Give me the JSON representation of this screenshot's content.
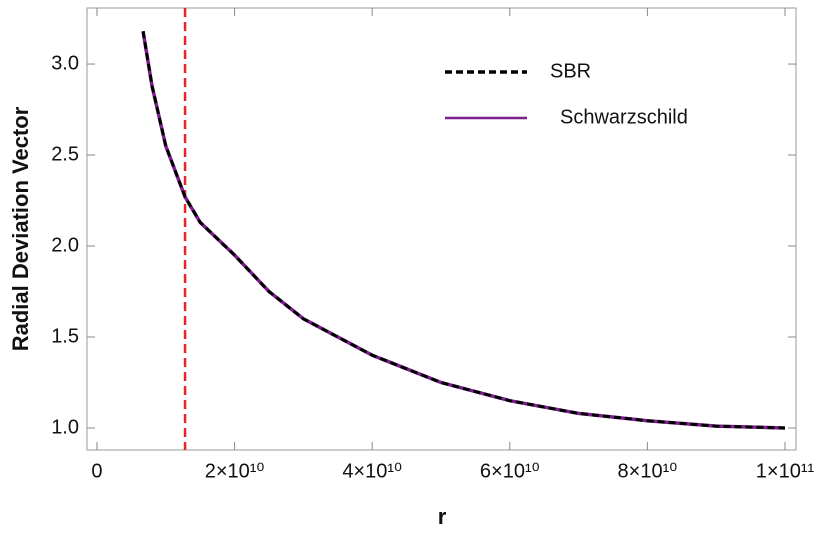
{
  "chart_data": {
    "type": "line",
    "xlabel": "r",
    "ylabel": "Radial Deviation Vector",
    "x": [
      6700000000,
      8000000000,
      10000000000,
      12800000000,
      15000000000,
      20000000000,
      25000000000,
      30000000000,
      40000000000,
      50000000000,
      60000000000,
      70000000000,
      80000000000,
      90000000000,
      100000000000
    ],
    "series": [
      {
        "name": "Schwarzschild",
        "color": "#7b1f8c",
        "dash": false,
        "values": [
          3.18,
          2.88,
          2.55,
          2.27,
          2.13,
          1.95,
          1.75,
          1.6,
          1.4,
          1.25,
          1.15,
          1.08,
          1.04,
          1.01,
          1.0
        ]
      },
      {
        "name": "SBR",
        "color": "#000000",
        "dash": true,
        "values": [
          3.18,
          2.88,
          2.55,
          2.27,
          2.13,
          1.95,
          1.75,
          1.6,
          1.4,
          1.25,
          1.15,
          1.08,
          1.04,
          1.01,
          1.0
        ]
      }
    ],
    "legend_order": [
      1,
      0
    ],
    "vline": 12800000000,
    "vline_color": "#e8262a",
    "xlim": [
      -1450000000,
      101600000000
    ],
    "xticks": [
      0,
      {
        "value": 20000000000,
        "label": "2×10¹⁰"
      },
      {
        "value": 40000000000,
        "label": "4×10¹⁰"
      },
      {
        "value": 60000000000,
        "label": "6×10¹⁰"
      },
      {
        "value": 80000000000,
        "label": "8×10¹⁰"
      },
      {
        "value": 100000000000,
        "label": "1×10¹¹"
      }
    ],
    "ylim": [
      0.879,
      3.308
    ],
    "yticks": [
      {
        "value": 1,
        "label": "1.0"
      },
      {
        "value": 1.5,
        "label": "1.5"
      },
      {
        "value": 2,
        "label": "2.0"
      },
      {
        "value": 2.5,
        "label": "2.5"
      },
      {
        "value": 3,
        "label": "3.0"
      }
    ],
    "legend": "upper right"
  }
}
